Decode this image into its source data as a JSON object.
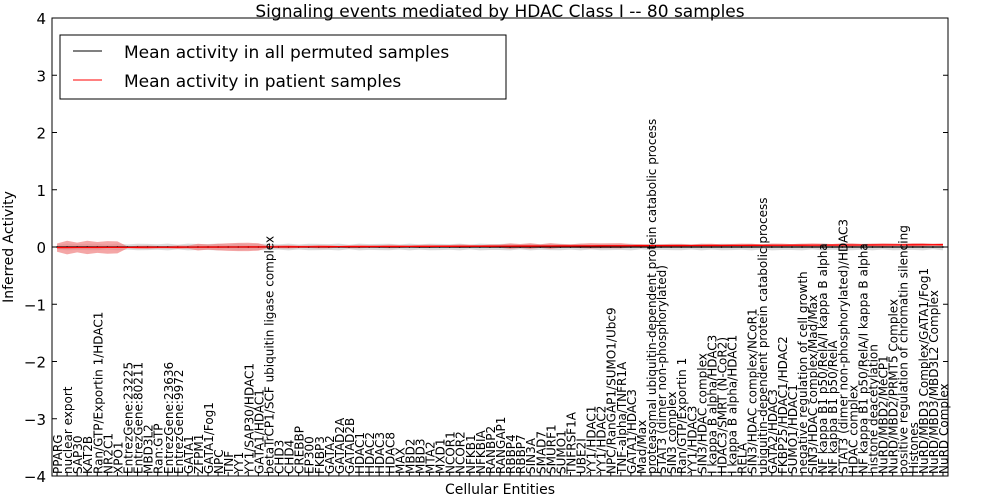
{
  "chart_data": {
    "type": "line",
    "title": "Signaling events mediated by HDAC Class I -- 80 samples",
    "xlabel": "Cellular Entities",
    "ylabel": "Inferred Activity",
    "ylim": [
      -4,
      4
    ],
    "yticks": [
      "4",
      "3",
      "2",
      "1",
      "0",
      "−1",
      "−2",
      "−3",
      "−4"
    ],
    "ytick_values": [
      4,
      3,
      2,
      1,
      0,
      -1,
      -2,
      -3,
      -4
    ],
    "grid": false,
    "legend_position": "top-left",
    "legend": [
      "Mean activity in all permuted samples",
      "Mean activity in patient samples"
    ],
    "colors": {
      "permuted": "#000000",
      "patient": "#ff0000",
      "permuted_band": "#cccccc",
      "patient_band": "#f08080"
    },
    "categories": [
      "PPARG",
      "nuclear export",
      "SAP30",
      "KAT2B",
      "Ran/GTP/Exportin 1/HDAC1",
      "NR2C1",
      "XPO1",
      "EntrezGene:23225",
      "EntrezGene:80211",
      "MBD3L2",
      "Ran:GTP",
      "EntrezGene:23636",
      "EntrezGene:9972",
      "GATA1",
      "ZFPM1",
      "GATA1/Fog1",
      "NPC",
      "TNF",
      "YY1",
      "YY1/SAP30/HDAC1",
      "GATA1/HDAC1",
      "betaTrCP1/SCF ubiquitin ligase complex",
      "CHD3",
      "CHD4",
      "CREBBP",
      "EP300",
      "FKBP3",
      "GATA2",
      "GATAD2A",
      "GATAD2B",
      "HDAC1",
      "HDAC2",
      "HDAC3",
      "HDAC8",
      "MAX",
      "MBD2",
      "MBD3",
      "MTA2",
      "MXD1",
      "NCOR1",
      "NCOR2",
      "NFKB1",
      "NFKBIA",
      "RANBP2",
      "RANGAP1",
      "RBBP4",
      "RBBP7",
      "SIN3A",
      "SMAD7",
      "SMURF1",
      "SUMO1",
      "TNFRSF1A",
      "UBE2I",
      "YY1/HDAC1",
      "YY1/HDAC2",
      "NPC/RanGAP1/SUMO1/Ubc9",
      "TNF-alpha/TNFR1A",
      "GATA1/HDAC3",
      "Mad/Max",
      "proteasomal ubiquitin-dependent protein catabolic process",
      "STAT3 (dimer non-phosphorylated)",
      "SIN3 complex",
      "Ran/GTP/Exportin 1",
      "YY1/HDAC3",
      "SIN3/HDAC complex",
      "I kappa B alpha/HDAC3",
      "HDAC3/SMRT (N-CoR2)",
      "I kappa B alpha/HDAC1",
      "RELA",
      "SIN3/HDAC complex/NCoR1",
      "ubiquitin-dependent protein catabolic process",
      "GATA2/HDAC3",
      "FKBP25/HDAC1/HDAC2",
      "SUMO1/HDAC1",
      "negative regulation of cell growth",
      "SIN3/HDAC complex/Mad/Max",
      "NF kappa B1 p50/RelA/I kappa B alpha",
      "NF kappa B1 p50/RelA",
      "STAT3 (dimer non-phosphorylated)/HDAC3",
      "HDAC complex",
      "NF kappa B1 p50/RelA/I kappa B alpha",
      "histone deacetylation",
      "NuRD/MBD2/MeCP1",
      "NuRD/MBD2/PRMT5 Complex",
      "positive regulation of chromatin silencing",
      "Histones",
      "NuRD/MBD3 Complex/GATA1/Fog1",
      "NuRD/MBD3/MBD3L2 Complex",
      "NuRD Complex"
    ],
    "series": [
      {
        "name": "Mean activity in all permuted samples",
        "mean_value": 0.0,
        "band_halfwidth": 0.05
      },
      {
        "name": "Mean activity in patient samples",
        "start_value": -0.01,
        "end_value": 0.04,
        "wide_band_ranges": [
          [
            0,
            6,
            0.12
          ],
          [
            14,
            16,
            0.06
          ],
          [
            17,
            20,
            0.08
          ],
          [
            45,
            50,
            0.05
          ],
          [
            52,
            56,
            0.05
          ]
        ],
        "default_band_halfwidth": 0.03
      }
    ]
  }
}
